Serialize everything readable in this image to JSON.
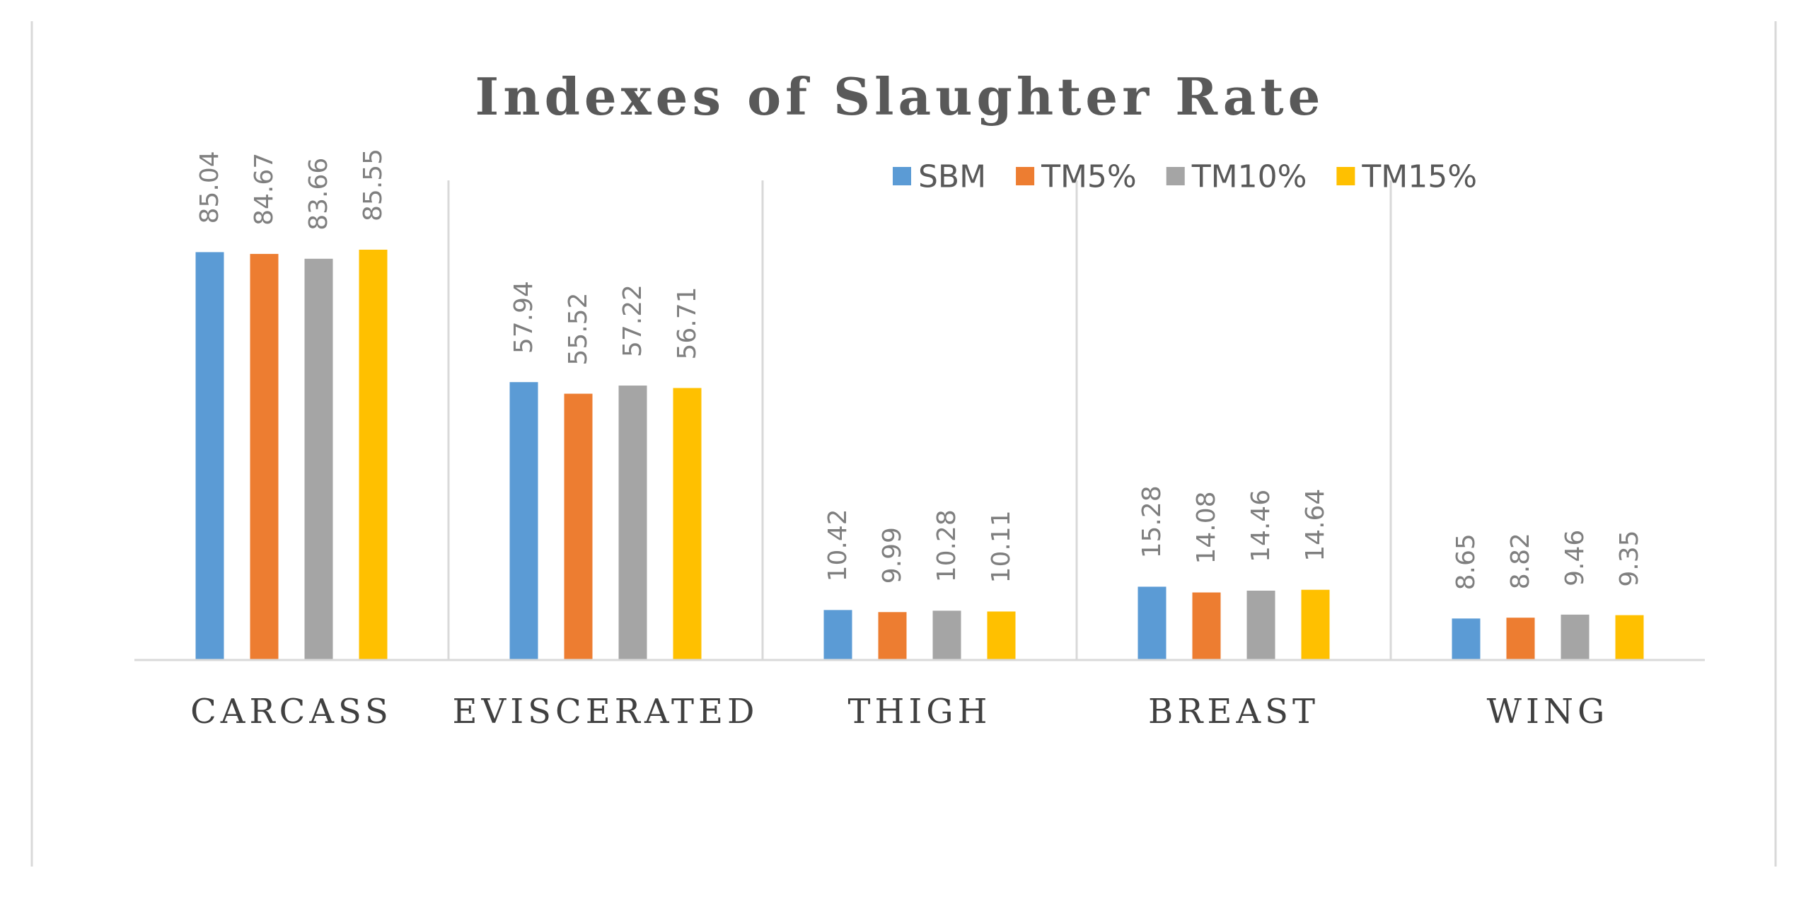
{
  "chart_data": {
    "type": "bar",
    "title": "Indexes of Slaughter Rate",
    "categories": [
      "CARCASS",
      "EVISCERATED",
      "THIGH",
      "BREAST",
      "WING"
    ],
    "series": [
      {
        "name": "SBM",
        "color": "#5b9bd5",
        "values": [
          85.04,
          57.94,
          10.42,
          15.28,
          8.65
        ],
        "labels": [
          "85.04",
          "57.94",
          "10.42",
          "15.28",
          "8.65"
        ]
      },
      {
        "name": "TM5%",
        "color": "#ed7d31",
        "values": [
          84.67,
          55.52,
          9.99,
          14.08,
          8.82
        ],
        "labels": [
          "84.67",
          "55.52",
          "9.99",
          "14.08",
          "8.82"
        ]
      },
      {
        "name": "TM10%",
        "color": "#a5a5a5",
        "values": [
          83.66,
          57.22,
          10.28,
          14.46,
          9.46
        ],
        "labels": [
          "83.66",
          "57.22",
          "10.28",
          "14.46",
          "9.46"
        ]
      },
      {
        "name": "TM15%",
        "color": "#ffc000",
        "values": [
          85.55,
          56.71,
          10.11,
          14.64,
          9.35
        ],
        "labels": [
          "85.55",
          "56.71",
          "10.11",
          "14.64",
          "9.35"
        ]
      }
    ],
    "xlabel": "",
    "ylabel": "",
    "ylim": [
      0,
      100
    ],
    "grid": "vertical category separators",
    "legend": "top-right",
    "data_labels": "rotated vertical above bars"
  }
}
